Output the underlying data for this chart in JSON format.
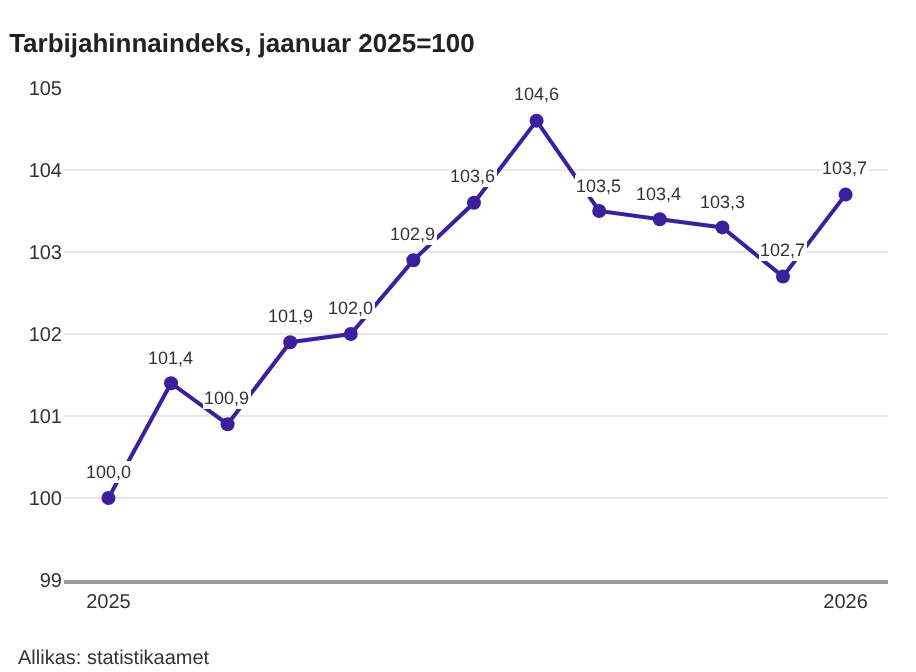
{
  "chart_data": {
    "type": "line",
    "title": "Tarbijahinnaindeks, jaanuar 2025=100",
    "annotations": [
      "Allikas: statistikaamet"
    ],
    "x": [
      "2025-01",
      "2025-02",
      "2025-03",
      "2025-04",
      "2025-05",
      "2025-06",
      "2025-07",
      "2025-08",
      "2025-09",
      "2025-10",
      "2025-11",
      "2025-12",
      "2026-01"
    ],
    "series": [
      {
        "color": "#3b1f9c",
        "values": [
          100.0,
          101.4,
          100.9,
          101.9,
          102.0,
          102.9,
          103.6,
          104.6,
          103.5,
          103.4,
          103.3,
          102.7,
          103.7
        ],
        "value_labels": [
          "100,0",
          "101,4",
          "100,9",
          "101,9",
          "102,0",
          "102,9",
          "103,6",
          "104,6",
          "103,5",
          "103,4",
          "103,3",
          "102,7",
          "103,7"
        ]
      }
    ],
    "xlim": [
      "2024-12-10",
      "2026-01-22"
    ],
    "xticks": [
      {
        "value": "2025-01",
        "label": "2025"
      },
      {
        "value": "2026-01",
        "label": "2026"
      }
    ],
    "ylim": [
      99,
      105
    ],
    "yticks": [
      99,
      100,
      101,
      102,
      103,
      104,
      105
    ],
    "grid": "y",
    "marker": "circle",
    "line_style": "solid"
  }
}
